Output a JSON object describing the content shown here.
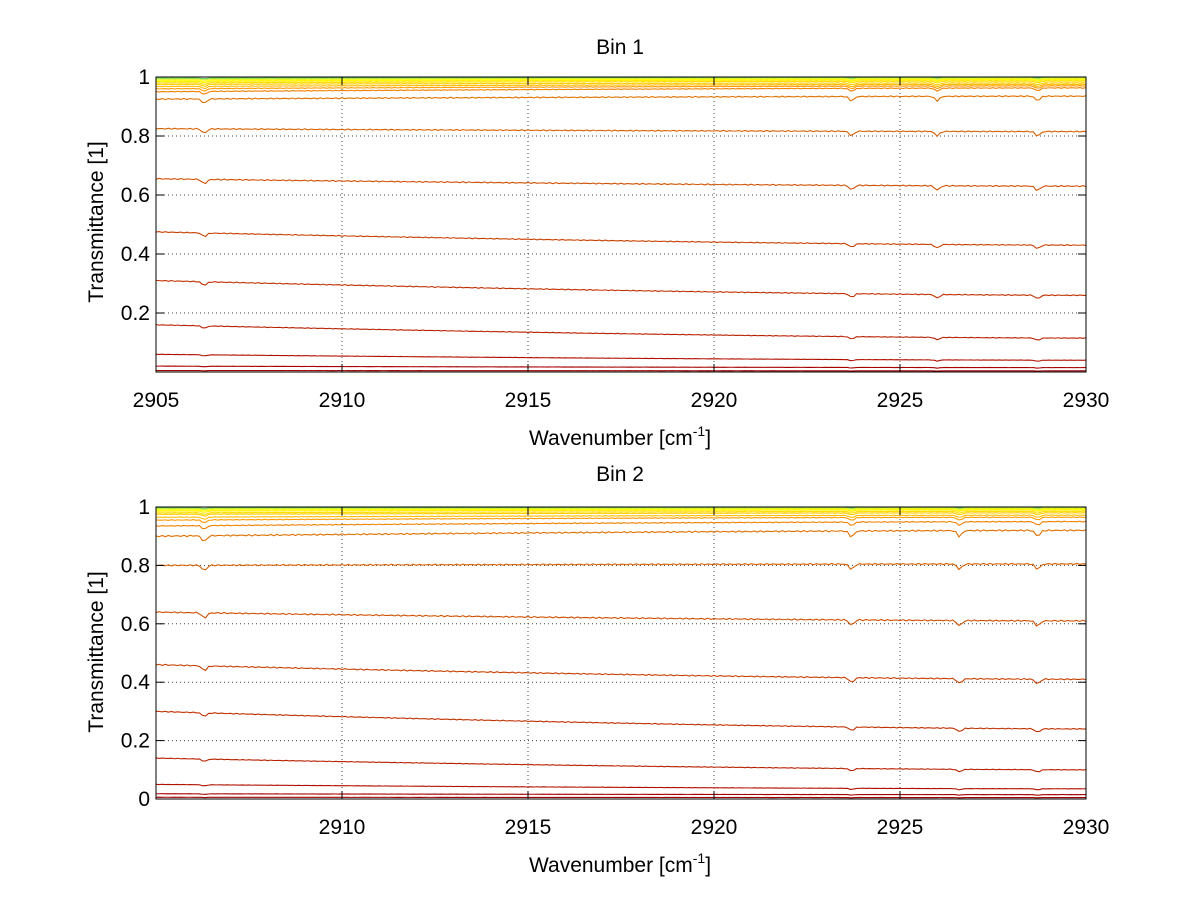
{
  "chart_data": [
    {
      "type": "line",
      "title": "Bin 1",
      "xlabel": "Wavenumber [cm",
      "xlabel_superscript": "-1",
      "xlabel_suffix": "]",
      "ylabel": "Transmittance [1]",
      "xlim": [
        2905,
        2930
      ],
      "ylim": [
        0,
        1
      ],
      "x_ticks": [
        2905,
        2910,
        2915,
        2920,
        2925,
        2930
      ],
      "x_tick_labels": [
        "2905",
        "2910",
        "2915",
        "2920",
        "2925",
        "2930"
      ],
      "y_ticks": [
        0.2,
        0.4,
        0.6,
        0.8,
        1
      ],
      "y_tick_labels": [
        "0.2",
        "0.4",
        "0.6",
        "0.8",
        "1"
      ],
      "grid": true,
      "series_count": 18,
      "absorption_lines": [
        2906.3,
        2923.7,
        2926.0,
        2928.7
      ],
      "series": [
        {
          "start": 0.996,
          "end": 0.998,
          "dip": 0.002,
          "color": "#66cc66"
        },
        {
          "start": 0.993,
          "end": 0.996,
          "dip": 0.003,
          "color": "#ccee33"
        },
        {
          "start": 0.989,
          "end": 0.993,
          "dip": 0.004,
          "color": "#ffff00"
        },
        {
          "start": 0.985,
          "end": 0.99,
          "dip": 0.005,
          "color": "#ffee00"
        },
        {
          "start": 0.98,
          "end": 0.986,
          "dip": 0.006,
          "color": "#ffdd00"
        },
        {
          "start": 0.975,
          "end": 0.98,
          "dip": 0.007,
          "color": "#ffcc00"
        },
        {
          "start": 0.968,
          "end": 0.975,
          "dip": 0.008,
          "color": "#ffbb00"
        },
        {
          "start": 0.96,
          "end": 0.97,
          "dip": 0.009,
          "color": "#ff9900"
        },
        {
          "start": 0.95,
          "end": 0.963,
          "dip": 0.01,
          "color": "#f08000"
        },
        {
          "start": 0.925,
          "end": 0.935,
          "dip": 0.015,
          "color": "#e07000"
        },
        {
          "start": 0.825,
          "end": 0.815,
          "dip": 0.015,
          "color": "#d86000"
        },
        {
          "start": 0.655,
          "end": 0.63,
          "dip": 0.015,
          "color": "#d05000"
        },
        {
          "start": 0.475,
          "end": 0.43,
          "dip": 0.012,
          "color": "#c84000"
        },
        {
          "start": 0.31,
          "end": 0.26,
          "dip": 0.012,
          "color": "#c03000"
        },
        {
          "start": 0.16,
          "end": 0.115,
          "dip": 0.008,
          "color": "#b82000"
        },
        {
          "start": 0.06,
          "end": 0.04,
          "dip": 0.004,
          "color": "#b01000"
        },
        {
          "start": 0.02,
          "end": 0.015,
          "dip": 0.002,
          "color": "#a80000"
        },
        {
          "start": 0.005,
          "end": 0.004,
          "dip": 0.001,
          "color": "#a00000"
        }
      ]
    },
    {
      "type": "line",
      "title": "Bin 2",
      "xlabel": "Wavenumber [cm",
      "xlabel_superscript": "-1",
      "xlabel_suffix": "]",
      "ylabel": "Transmittance [1]",
      "xlim": [
        2905,
        2930
      ],
      "ylim": [
        0,
        1
      ],
      "x_ticks": [
        2910,
        2915,
        2920,
        2925,
        2930
      ],
      "x_tick_labels": [
        "2910",
        "2915",
        "2920",
        "2925",
        "2930"
      ],
      "y_ticks": [
        0,
        0.2,
        0.4,
        0.6,
        0.8,
        1
      ],
      "y_tick_labels": [
        "0",
        "0.2",
        "0.4",
        "0.6",
        "0.8",
        "1"
      ],
      "grid": true,
      "series_count": 18,
      "absorption_lines": [
        2906.3,
        2923.7,
        2926.6,
        2928.7
      ],
      "series": [
        {
          "start": 0.997,
          "end": 0.998,
          "dip": 0.002,
          "color": "#66cc66"
        },
        {
          "start": 0.994,
          "end": 0.996,
          "dip": 0.003,
          "color": "#ccee33"
        },
        {
          "start": 0.99,
          "end": 0.993,
          "dip": 0.004,
          "color": "#ffff00"
        },
        {
          "start": 0.986,
          "end": 0.99,
          "dip": 0.005,
          "color": "#ffee00"
        },
        {
          "start": 0.98,
          "end": 0.985,
          "dip": 0.006,
          "color": "#ffdd00"
        },
        {
          "start": 0.975,
          "end": 0.98,
          "dip": 0.007,
          "color": "#ffcc00"
        },
        {
          "start": 0.965,
          "end": 0.972,
          "dip": 0.008,
          "color": "#ffbb00"
        },
        {
          "start": 0.955,
          "end": 0.965,
          "dip": 0.01,
          "color": "#ff9900"
        },
        {
          "start": 0.935,
          "end": 0.95,
          "dip": 0.012,
          "color": "#f08000"
        },
        {
          "start": 0.9,
          "end": 0.92,
          "dip": 0.02,
          "color": "#e07000"
        },
        {
          "start": 0.8,
          "end": 0.805,
          "dip": 0.018,
          "color": "#d86000"
        },
        {
          "start": 0.64,
          "end": 0.61,
          "dip": 0.018,
          "color": "#d05000"
        },
        {
          "start": 0.46,
          "end": 0.41,
          "dip": 0.016,
          "color": "#c84000"
        },
        {
          "start": 0.3,
          "end": 0.24,
          "dip": 0.012,
          "color": "#c03000"
        },
        {
          "start": 0.14,
          "end": 0.1,
          "dip": 0.008,
          "color": "#b82000"
        },
        {
          "start": 0.05,
          "end": 0.035,
          "dip": 0.004,
          "color": "#b01000"
        },
        {
          "start": 0.018,
          "end": 0.015,
          "dip": 0.002,
          "color": "#a80000"
        },
        {
          "start": 0.006,
          "end": 0.005,
          "dip": 0.001,
          "color": "#a00000"
        }
      ]
    }
  ]
}
